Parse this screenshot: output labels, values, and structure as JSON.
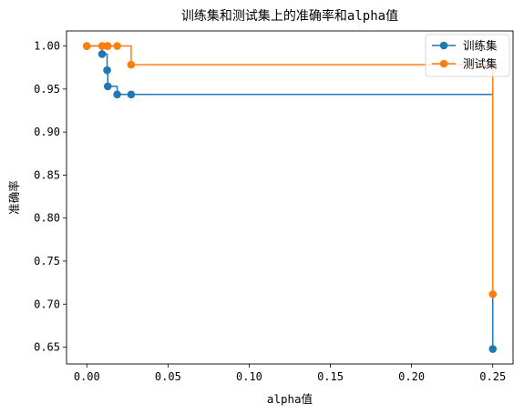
{
  "chart_data": {
    "type": "line",
    "title": "训练集和测试集上的准确率和alpha值",
    "xlabel": "alpha值",
    "ylabel": "准确率",
    "xlim": [
      -0.0125,
      0.2625
    ],
    "ylim": [
      0.6305,
      1.0175
    ],
    "x_ticks": [
      0.0,
      0.05,
      0.1,
      0.15,
      0.2,
      0.25
    ],
    "x_tick_labels": [
      "0.00",
      "0.05",
      "0.10",
      "0.15",
      "0.20",
      "0.25"
    ],
    "y_ticks": [
      0.65,
      0.7,
      0.75,
      0.8,
      0.85,
      0.9,
      0.95,
      1.0
    ],
    "y_tick_labels": [
      "0.65",
      "0.70",
      "0.75",
      "0.80",
      "0.85",
      "0.90",
      "0.95",
      "1.00"
    ],
    "grid": false,
    "legend_position": "top-right",
    "drawstyle": "steps-post",
    "series": [
      {
        "name": "训练集",
        "color": "#1f77b4",
        "x": [
          0.0,
          0.0094,
          0.0125,
          0.0129,
          0.0187,
          0.0273,
          0.25
        ],
        "y": [
          1.0,
          0.9906,
          0.9718,
          0.9531,
          0.9437,
          0.9437,
          0.6479
        ]
      },
      {
        "name": "测试集",
        "color": "#ff7f0e",
        "x": [
          0.0,
          0.0094,
          0.0125,
          0.0129,
          0.0187,
          0.0273,
          0.25
        ],
        "y": [
          1.0,
          1.0,
          1.0,
          1.0,
          1.0,
          0.9783,
          0.7115
        ]
      }
    ]
  }
}
